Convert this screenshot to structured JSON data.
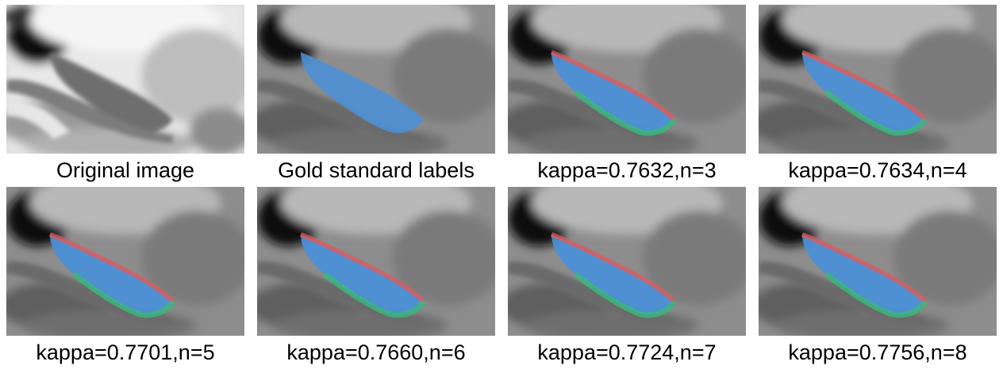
{
  "panels": [
    {
      "caption": "Original image",
      "kind": "original"
    },
    {
      "caption": "Gold standard labels",
      "kind": "gold"
    },
    {
      "caption": "kappa=0.7632,n=3",
      "kind": "seg",
      "kappa": 0.7632,
      "n": 3
    },
    {
      "caption": "kappa=0.7634,n=4",
      "kind": "seg",
      "kappa": 0.7634,
      "n": 4
    },
    {
      "caption": "kappa=0.7701,n=5",
      "kind": "seg",
      "kappa": 0.7701,
      "n": 5
    },
    {
      "caption": "kappa=0.7660,n=6",
      "kind": "seg",
      "kappa": 0.766,
      "n": 6
    },
    {
      "caption": "kappa=0.7724,n=7",
      "kind": "seg",
      "kappa": 0.7724,
      "n": 7
    },
    {
      "caption": "kappa=0.7756,n=8",
      "kind": "seg",
      "kappa": 0.7756,
      "n": 8
    }
  ],
  "colors": {
    "segmentation_blue": "#4a90d9",
    "false_negative_green": "#3bb87a",
    "false_positive_red": "#e05a5a"
  }
}
